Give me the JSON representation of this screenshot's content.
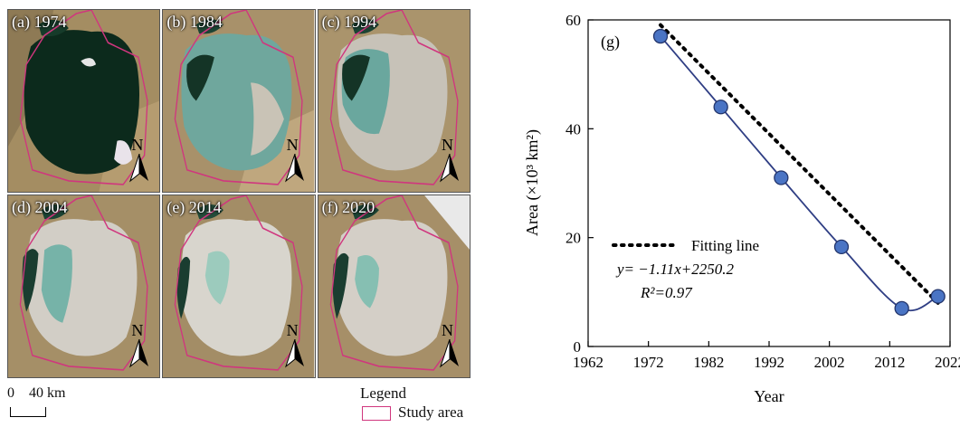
{
  "maps": {
    "panels": [
      {
        "label": "(a) 1974",
        "year": 1974
      },
      {
        "label": "(b) 1984",
        "year": 1984
      },
      {
        "label": "(c) 1994",
        "year": 1994
      },
      {
        "label": "(d) 2004",
        "year": 2004
      },
      {
        "label": "(e) 2014",
        "year": 2014
      },
      {
        "label": "(f) 2020",
        "year": 2020
      }
    ],
    "north_letter": "N",
    "scalebar": {
      "start": "0",
      "end": "40 km"
    },
    "legend": {
      "title": "Legend",
      "item": "Study area",
      "color": "#d0367e"
    }
  },
  "chart_data": {
    "type": "scatter",
    "panel_label": "(g)",
    "xlabel": "Year",
    "ylabel": "Area (×10³ km²)",
    "xlim": [
      1962,
      2022
    ],
    "ylim": [
      0,
      60
    ],
    "xticks": [
      1962,
      1972,
      1982,
      1992,
      2002,
      2012,
      2022
    ],
    "yticks": [
      0,
      20,
      40,
      60
    ],
    "series": [
      {
        "x": [
          1974,
          1984,
          1994,
          2004,
          2014,
          2020
        ],
        "y": [
          57.0,
          44.0,
          31.0,
          18.3,
          7.0,
          9.2
        ]
      }
    ],
    "fit": {
      "label": "Fitting line",
      "slope": -1.11,
      "intercept": 2250.2,
      "x_range": [
        1974,
        2020
      ]
    },
    "equation": "y= −1.11x+2250.2",
    "r2": "R²=0.97",
    "colors": {
      "marker": "#4a74c4",
      "marker_edge": "#23356b",
      "line": "#2f3e84",
      "fit": "#000000"
    }
  }
}
